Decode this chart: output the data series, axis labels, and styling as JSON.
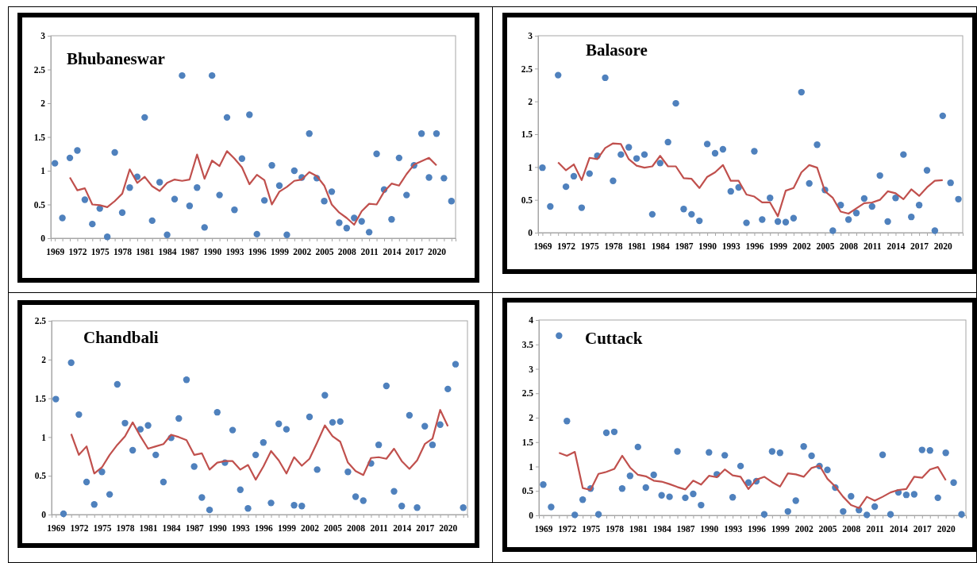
{
  "chart_data": [
    {
      "type": "scatter",
      "title": "Bhubaneswar",
      "ylim": [
        0,
        3
      ],
      "yticks": [
        0,
        0.5,
        1,
        1.5,
        2,
        2.5,
        3
      ],
      "categories": [
        "1969",
        null,
        null,
        "1972",
        null,
        null,
        "1975",
        null,
        null,
        "1978",
        null,
        null,
        "1981",
        null,
        null,
        "1984",
        null,
        null,
        "1987",
        null,
        null,
        "1990",
        null,
        null,
        "1993",
        null,
        null,
        "1996",
        null,
        null,
        "1999",
        null,
        null,
        "2002",
        null,
        null,
        "2005",
        null,
        null,
        "2008",
        null,
        null,
        "2011",
        null,
        null,
        "2014",
        null,
        null,
        "2017",
        null,
        null,
        "2020",
        null,
        null
      ],
      "series": [
        {
          "marker": "circle",
          "color": "#4f81bd",
          "values": [
            1.11,
            0.3,
            1.19,
            1.3,
            0.57,
            0.21,
            0.44,
            0.02,
            1.27,
            0.38,
            0.75,
            0.91,
            1.79,
            0.26,
            0.83,
            0.05,
            0.58,
            2.41,
            0.48,
            0.75,
            0.16,
            2.41,
            0.64,
            1.79,
            0.42,
            1.18,
            1.83,
            0.06,
            0.56,
            1.08,
            0.78,
            0.05,
            1.0,
            0.9,
            1.55,
            0.89,
            0.55,
            0.69,
            0.23,
            0.15,
            0.3,
            0.25,
            0.09,
            1.25,
            0.72,
            0.28,
            1.19,
            0.64,
            1.08,
            1.55,
            0.9,
            1.55,
            0.89,
            0.55
          ]
        },
        {
          "type": "line",
          "marker": "none",
          "color": "#c0504d",
          "values": [
            null,
            null,
            0.9,
            0.71,
            0.74,
            0.5,
            0.49,
            0.46,
            0.55,
            0.66,
            1.02,
            0.82,
            0.91,
            0.77,
            0.7,
            0.82,
            0.87,
            0.85,
            0.87,
            1.24,
            0.88,
            1.15,
            1.07,
            1.29,
            1.18,
            1.05,
            0.8,
            0.94,
            0.86,
            0.5,
            0.69,
            0.76,
            0.85,
            0.87,
            0.98,
            0.92,
            0.78,
            0.5,
            0.38,
            0.3,
            0.2,
            0.4,
            0.51,
            0.5,
            0.69,
            0.81,
            0.78,
            0.95,
            1.09,
            1.14,
            1.19,
            1.08,
            null,
            null
          ]
        }
      ]
    },
    {
      "type": "scatter",
      "title": "Balasore",
      "ylim": [
        0,
        3
      ],
      "yticks": [
        0,
        0.5,
        1,
        1.5,
        2,
        2.5,
        3
      ],
      "categories": [
        "1969",
        null,
        null,
        "1972",
        null,
        null,
        "1975",
        null,
        null,
        "1978",
        null,
        null,
        "1981",
        null,
        null,
        "1984",
        null,
        null,
        "1987",
        null,
        null,
        "1990",
        null,
        null,
        "1993",
        null,
        null,
        "1996",
        null,
        null,
        "1999",
        null,
        null,
        "2002",
        null,
        null,
        "2005",
        null,
        null,
        "2008",
        null,
        null,
        "2011",
        null,
        null,
        "2014",
        null,
        null,
        "2017",
        null,
        null,
        "2020",
        null,
        null
      ],
      "series": [
        {
          "marker": "circle",
          "color": "#4f81bd",
          "values": [
            0.99,
            0.4,
            2.4,
            0.7,
            0.86,
            0.38,
            0.9,
            1.17,
            2.36,
            0.79,
            1.19,
            1.3,
            1.13,
            1.19,
            0.28,
            1.06,
            1.38,
            1.97,
            0.36,
            0.28,
            0.18,
            1.35,
            1.21,
            1.27,
            0.63,
            0.69,
            0.15,
            1.24,
            0.2,
            0.53,
            0.17,
            0.16,
            0.22,
            2.14,
            0.75,
            1.34,
            0.65,
            0.03,
            0.42,
            0.2,
            0.3,
            0.52,
            0.4,
            0.87,
            0.17,
            0.53,
            1.19,
            0.24,
            0.42,
            0.95,
            0.03,
            1.78,
            0.76,
            0.51
          ]
        },
        {
          "type": "line",
          "marker": "none",
          "color": "#c0504d",
          "values": [
            null,
            null,
            1.07,
            0.95,
            1.04,
            0.8,
            1.14,
            1.12,
            1.29,
            1.36,
            1.35,
            1.12,
            1.02,
            0.99,
            1.01,
            1.17,
            1.01,
            1.01,
            0.83,
            0.82,
            0.68,
            0.85,
            0.92,
            1.03,
            0.79,
            0.79,
            0.58,
            0.55,
            0.46,
            0.46,
            0.25,
            0.64,
            0.68,
            0.92,
            1.03,
            0.99,
            0.63,
            0.53,
            0.32,
            0.29,
            0.37,
            0.45,
            0.46,
            0.5,
            0.63,
            0.6,
            0.51,
            0.66,
            0.56,
            0.69,
            0.79,
            0.8,
            null,
            null
          ]
        }
      ]
    },
    {
      "type": "scatter",
      "title": "Chandbali",
      "ylim": [
        0,
        2.5
      ],
      "yticks": [
        0,
        0.5,
        1,
        1.5,
        2,
        2.5
      ],
      "categories": [
        "1969",
        null,
        null,
        "1972",
        null,
        null,
        "1975",
        null,
        null,
        "1978",
        null,
        null,
        "1981",
        null,
        null,
        "1984",
        null,
        null,
        "1987",
        null,
        null,
        "1990",
        null,
        null,
        "1993",
        null,
        null,
        "1996",
        null,
        null,
        "1999",
        null,
        null,
        "2002",
        null,
        null,
        "2005",
        null,
        null,
        "2008",
        null,
        null,
        "2011",
        null,
        null,
        "2014",
        null,
        null,
        "2017",
        null,
        null,
        "2020",
        null,
        null
      ],
      "series": [
        {
          "marker": "circle",
          "color": "#4f81bd",
          "values": [
            1.49,
            0.01,
            1.96,
            1.29,
            0.42,
            0.13,
            0.55,
            0.26,
            1.68,
            1.18,
            0.83,
            1.1,
            1.15,
            0.77,
            0.42,
            0.99,
            1.24,
            1.74,
            0.62,
            0.22,
            0.06,
            1.32,
            0.67,
            1.09,
            0.32,
            0.08,
            0.77,
            0.93,
            0.15,
            1.17,
            1.1,
            0.12,
            0.11,
            1.26,
            0.58,
            1.54,
            1.19,
            1.2,
            0.55,
            0.23,
            0.18,
            0.66,
            0.9,
            1.66,
            0.3,
            0.11,
            1.28,
            0.09,
            1.14,
            0.9,
            1.16,
            1.62,
            1.94,
            0.09
          ]
        },
        {
          "type": "line",
          "marker": "none",
          "color": "#c0504d",
          "values": [
            null,
            null,
            1.04,
            0.77,
            0.88,
            0.53,
            0.61,
            0.77,
            0.9,
            1.01,
            1.19,
            1.01,
            0.85,
            0.88,
            0.91,
            1.03,
            1.0,
            0.96,
            0.77,
            0.79,
            0.58,
            0.67,
            0.69,
            0.69,
            0.58,
            0.64,
            0.45,
            0.62,
            0.82,
            0.7,
            0.53,
            0.74,
            0.63,
            0.72,
            0.93,
            1.15,
            1.01,
            0.94,
            0.67,
            0.56,
            0.51,
            0.73,
            0.74,
            0.72,
            0.85,
            0.69,
            0.59,
            0.7,
            0.91,
            0.98,
            1.35,
            1.14,
            null,
            null
          ]
        }
      ]
    },
    {
      "type": "scatter",
      "title": "Cuttack",
      "ylim": [
        0,
        4
      ],
      "yticks": [
        0,
        0.5,
        1,
        1.5,
        2,
        2.5,
        3,
        3.5,
        4
      ],
      "categories": [
        "1969",
        null,
        null,
        "1972",
        null,
        null,
        "1975",
        null,
        null,
        "1978",
        null,
        null,
        "1981",
        null,
        null,
        "1984",
        null,
        null,
        "1987",
        null,
        null,
        "1990",
        null,
        null,
        "1993",
        null,
        null,
        "1996",
        null,
        null,
        "1999",
        null,
        null,
        "2002",
        null,
        null,
        "2005",
        null,
        null,
        "2008",
        null,
        null,
        "2011",
        null,
        null,
        "2014",
        null,
        null,
        "2017",
        null,
        null,
        "2020",
        null,
        null
      ],
      "series": [
        {
          "marker": "circle",
          "color": "#4f81bd",
          "values": [
            0.63,
            0.17,
            3.68,
            1.93,
            0.01,
            0.32,
            0.55,
            0.02,
            1.69,
            1.71,
            0.55,
            0.81,
            1.4,
            0.57,
            0.83,
            0.41,
            0.38,
            1.31,
            0.36,
            0.44,
            0.21,
            1.29,
            0.84,
            1.23,
            0.37,
            1.01,
            0.67,
            0.7,
            0.02,
            1.31,
            1.28,
            0.08,
            0.3,
            1.41,
            1.22,
            1.01,
            0.93,
            0.57,
            0.08,
            0.39,
            0.11,
            0.01,
            0.18,
            1.24,
            0.02,
            0.47,
            0.42,
            0.43,
            1.34,
            1.33,
            0.36,
            1.28,
            0.67,
            0.02
          ]
        },
        {
          "type": "line",
          "marker": "none",
          "color": "#c0504d",
          "values": [
            null,
            null,
            1.28,
            1.22,
            1.3,
            0.56,
            0.52,
            0.85,
            0.89,
            0.95,
            1.22,
            0.98,
            0.83,
            0.8,
            0.71,
            0.69,
            0.64,
            0.58,
            0.53,
            0.71,
            0.63,
            0.81,
            0.78,
            0.94,
            0.82,
            0.79,
            0.54,
            0.73,
            0.79,
            0.68,
            0.59,
            0.86,
            0.84,
            0.79,
            0.97,
            1.02,
            0.75,
            0.59,
            0.38,
            0.21,
            0.15,
            0.38,
            0.3,
            0.38,
            0.47,
            0.52,
            0.54,
            0.79,
            0.77,
            0.94,
            0.99,
            0.72,
            null,
            null
          ]
        }
      ]
    }
  ]
}
